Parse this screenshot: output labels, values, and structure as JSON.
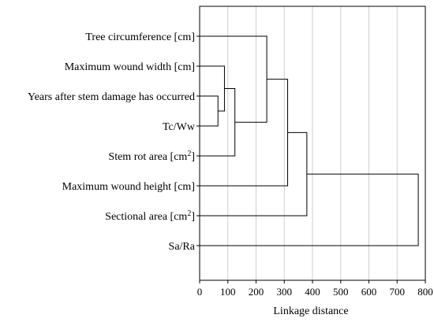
{
  "chart_data": {
    "type": "dendrogram",
    "orientation": "horizontal",
    "xlabel": "Linkage distance",
    "xlim": [
      0,
      800
    ],
    "xticks": [
      0,
      100,
      200,
      300,
      400,
      500,
      600,
      700,
      800
    ],
    "grid": "vertical",
    "leaves": [
      {
        "key": "tc",
        "label_main": "Tree circumference [cm]",
        "label_sup": ""
      },
      {
        "key": "mww",
        "label_main": "Maximum wound width [cm]",
        "label_sup": ""
      },
      {
        "key": "yrs",
        "label_main": "Years after stem damage has occurred",
        "label_sup": ""
      },
      {
        "key": "tcww",
        "label_main": "Tc/Ww",
        "label_sup": ""
      },
      {
        "key": "sra",
        "label_main": "Stem rot area [cm",
        "label_sup": "2",
        "label_end": "]"
      },
      {
        "key": "mwh",
        "label_main": "Maximum wound height [cm]",
        "label_sup": ""
      },
      {
        "key": "sa",
        "label_main": "Sectional area [cm",
        "label_sup": "2",
        "label_end": "]"
      },
      {
        "key": "sara",
        "label_main": "Sa/Ra",
        "label_sup": ""
      }
    ],
    "merges": [
      {
        "id": "c1",
        "left": "yrs",
        "right": "tcww",
        "height": 65
      },
      {
        "id": "c2",
        "left": "mww",
        "right": "c1",
        "height": 88
      },
      {
        "id": "c3",
        "left": "c2",
        "right": "sra",
        "height": 125
      },
      {
        "id": "c4",
        "left": "tc",
        "right": "c3",
        "height": 238
      },
      {
        "id": "c5",
        "left": "c4",
        "right": "mwh",
        "height": 312
      },
      {
        "id": "c6",
        "left": "c5",
        "right": "sa",
        "height": 380
      },
      {
        "id": "c7",
        "left": "c6",
        "right": "sara",
        "height": 775
      }
    ]
  }
}
